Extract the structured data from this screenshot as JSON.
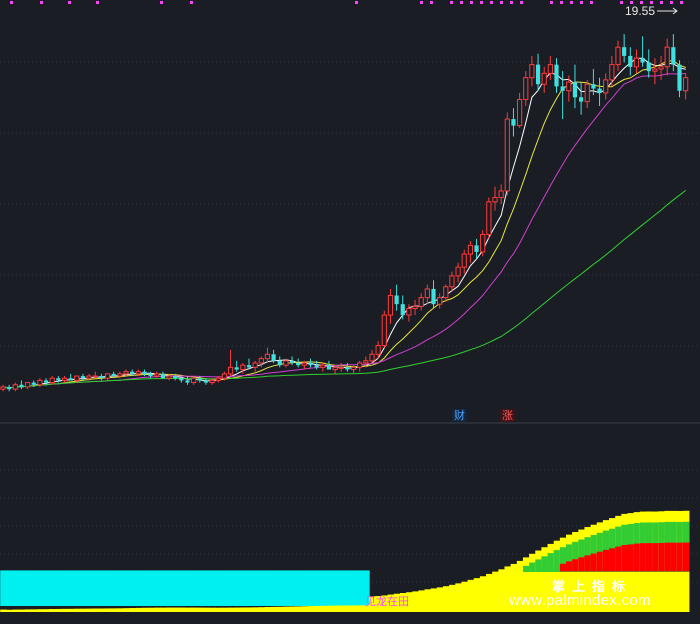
{
  "chart_data": {
    "type": "candlestick",
    "top_panel": {
      "price_label": "19.55",
      "ylim": [
        2.5,
        20.5
      ],
      "grid_lines": true,
      "markers": [
        {
          "label": "财",
          "index": 77,
          "color": "#4aa3ff"
        },
        {
          "label": "涨",
          "index": 85,
          "color": "#ff5a5a"
        }
      ],
      "moving_averages": [
        {
          "color": "#ffffff"
        },
        {
          "color": "#e8e838"
        },
        {
          "color": "#d040d0"
        },
        {
          "color": "#30d030"
        }
      ],
      "candles": [
        [
          3.0,
          3.2,
          2.9,
          3.1
        ],
        [
          3.1,
          3.2,
          2.9,
          3.0
        ],
        [
          3.0,
          3.3,
          2.9,
          3.2
        ],
        [
          3.2,
          3.4,
          3.0,
          3.1
        ],
        [
          3.1,
          3.3,
          3.0,
          3.3
        ],
        [
          3.3,
          3.4,
          3.1,
          3.2
        ],
        [
          3.2,
          3.5,
          3.1,
          3.4
        ],
        [
          3.4,
          3.5,
          3.2,
          3.3
        ],
        [
          3.3,
          3.6,
          3.2,
          3.5
        ],
        [
          3.5,
          3.6,
          3.3,
          3.4
        ],
        [
          3.4,
          3.6,
          3.3,
          3.5
        ],
        [
          3.5,
          3.7,
          3.4,
          3.4
        ],
        [
          3.4,
          3.6,
          3.3,
          3.6
        ],
        [
          3.6,
          3.7,
          3.4,
          3.5
        ],
        [
          3.5,
          3.7,
          3.4,
          3.6
        ],
        [
          3.6,
          3.8,
          3.5,
          3.6
        ],
        [
          3.6,
          3.7,
          3.4,
          3.5
        ],
        [
          3.5,
          3.7,
          3.4,
          3.7
        ],
        [
          3.7,
          3.8,
          3.5,
          3.6
        ],
        [
          3.6,
          3.8,
          3.5,
          3.7
        ],
        [
          3.7,
          3.9,
          3.6,
          3.8
        ],
        [
          3.8,
          3.9,
          3.6,
          3.7
        ],
        [
          3.7,
          3.9,
          3.6,
          3.8
        ],
        [
          3.8,
          3.9,
          3.6,
          3.7
        ],
        [
          3.7,
          3.8,
          3.5,
          3.6
        ],
        [
          3.6,
          3.8,
          3.5,
          3.7
        ],
        [
          3.7,
          3.8,
          3.5,
          3.5
        ],
        [
          3.5,
          3.7,
          3.4,
          3.6
        ],
        [
          3.6,
          3.7,
          3.4,
          3.5
        ],
        [
          3.5,
          3.6,
          3.3,
          3.4
        ],
        [
          3.4,
          3.6,
          3.2,
          3.3
        ],
        [
          3.3,
          3.5,
          3.2,
          3.5
        ],
        [
          3.5,
          3.6,
          3.3,
          3.4
        ],
        [
          3.4,
          3.5,
          3.2,
          3.3
        ],
        [
          3.3,
          3.5,
          3.2,
          3.4
        ],
        [
          3.4,
          3.6,
          3.3,
          3.5
        ],
        [
          3.5,
          3.8,
          3.4,
          3.7
        ],
        [
          3.7,
          4.8,
          3.6,
          4.0
        ],
        [
          4.0,
          4.3,
          3.8,
          3.9
        ],
        [
          3.9,
          4.2,
          3.7,
          4.1
        ],
        [
          4.1,
          4.4,
          3.9,
          4.0
        ],
        [
          4.0,
          4.3,
          3.8,
          4.2
        ],
        [
          4.2,
          4.5,
          4.0,
          4.4
        ],
        [
          4.4,
          4.9,
          4.2,
          4.6
        ],
        [
          4.6,
          4.8,
          4.2,
          4.3
        ],
        [
          4.3,
          4.5,
          4.0,
          4.1
        ],
        [
          4.1,
          4.4,
          4.0,
          4.3
        ],
        [
          4.3,
          4.5,
          4.1,
          4.2
        ],
        [
          4.2,
          4.4,
          4.0,
          4.1
        ],
        [
          4.1,
          4.3,
          3.9,
          4.2
        ],
        [
          4.2,
          4.4,
          4.0,
          4.1
        ],
        [
          4.1,
          4.3,
          3.9,
          4.0
        ],
        [
          4.0,
          4.2,
          3.8,
          4.1
        ],
        [
          4.1,
          4.3,
          3.9,
          3.9
        ],
        [
          3.9,
          4.1,
          3.7,
          4.0
        ],
        [
          4.0,
          4.2,
          3.8,
          4.0
        ],
        [
          4.0,
          4.2,
          3.8,
          3.9
        ],
        [
          3.9,
          4.1,
          3.7,
          4.0
        ],
        [
          4.0,
          4.3,
          3.8,
          4.2
        ],
        [
          4.2,
          4.5,
          4.0,
          4.3
        ],
        [
          4.3,
          4.8,
          4.2,
          4.6
        ],
        [
          4.6,
          5.2,
          4.4,
          5.0
        ],
        [
          5.0,
          6.6,
          4.9,
          6.4
        ],
        [
          6.4,
          7.6,
          6.0,
          7.3
        ],
        [
          7.3,
          7.8,
          6.6,
          6.9
        ],
        [
          6.9,
          7.3,
          6.2,
          6.4
        ],
        [
          6.4,
          6.9,
          6.1,
          6.7
        ],
        [
          6.7,
          7.1,
          6.4,
          6.8
        ],
        [
          6.8,
          7.4,
          6.6,
          7.2
        ],
        [
          7.2,
          7.8,
          6.9,
          7.6
        ],
        [
          7.6,
          8.0,
          6.7,
          6.9
        ],
        [
          6.9,
          7.4,
          6.7,
          7.2
        ],
        [
          7.2,
          7.8,
          7.0,
          7.7
        ],
        [
          7.7,
          8.4,
          7.5,
          8.2
        ],
        [
          8.2,
          8.8,
          7.9,
          8.6
        ],
        [
          8.6,
          9.4,
          8.3,
          9.2
        ],
        [
          9.2,
          9.8,
          8.8,
          9.6
        ],
        [
          9.6,
          9.9,
          9.0,
          9.3
        ],
        [
          9.3,
          10.3,
          9.1,
          10.1
        ],
        [
          10.1,
          11.8,
          9.9,
          11.6
        ],
        [
          11.6,
          12.3,
          11.2,
          11.8
        ],
        [
          11.8,
          12.4,
          11.5,
          12.1
        ],
        [
          12.1,
          15.7,
          11.9,
          15.4
        ],
        [
          15.4,
          15.9,
          14.6,
          15.1
        ],
        [
          15.1,
          16.6,
          15.0,
          16.3
        ],
        [
          16.3,
          17.6,
          16.0,
          17.3
        ],
        [
          17.3,
          18.3,
          16.9,
          17.9
        ],
        [
          17.9,
          18.4,
          16.7,
          17.0
        ],
        [
          17.0,
          17.8,
          16.6,
          17.5
        ],
        [
          17.5,
          18.3,
          17.2,
          17.9
        ],
        [
          17.9,
          18.2,
          16.6,
          16.9
        ],
        [
          16.9,
          17.6,
          15.4,
          16.7
        ],
        [
          16.7,
          17.4,
          16.2,
          17.1
        ],
        [
          17.1,
          17.9,
          15.9,
          16.4
        ],
        [
          16.4,
          17.1,
          15.6,
          16.2
        ],
        [
          16.2,
          17.2,
          15.9,
          17.0
        ],
        [
          17.0,
          17.7,
          16.5,
          16.8
        ],
        [
          16.8,
          17.3,
          16.0,
          16.6
        ],
        [
          16.6,
          17.5,
          16.3,
          17.2
        ],
        [
          17.2,
          18.3,
          16.9,
          17.9
        ],
        [
          17.9,
          19.0,
          17.6,
          18.7
        ],
        [
          18.7,
          19.3,
          18.0,
          18.3
        ],
        [
          18.3,
          18.7,
          17.4,
          17.8
        ],
        [
          17.8,
          18.6,
          17.5,
          18.2
        ],
        [
          18.2,
          19.2,
          17.8,
          18.0
        ],
        [
          18.0,
          18.6,
          17.3,
          17.6
        ],
        [
          17.6,
          18.2,
          17.0,
          17.7
        ],
        [
          17.7,
          18.3,
          17.2,
          17.8
        ],
        [
          17.8,
          19.1,
          17.4,
          18.7
        ],
        [
          18.7,
          19.3,
          17.6,
          17.9
        ],
        [
          17.9,
          18.1,
          16.4,
          16.7
        ],
        [
          16.7,
          17.5,
          16.3,
          17.3
        ]
      ]
    },
    "bottom_panel": {
      "type": "stacked-bar",
      "label": "见龙在田",
      "ylim": [
        0,
        140
      ],
      "grid_lines": true,
      "series": [
        {
          "color": "#00f0f0"
        },
        {
          "color": "#ffff00"
        },
        {
          "color": "#33cc33"
        },
        {
          "color": "#ff0000"
        }
      ]
    }
  },
  "watermark": {
    "cn": "掌上指标",
    "url": "www.palmindex.com"
  }
}
